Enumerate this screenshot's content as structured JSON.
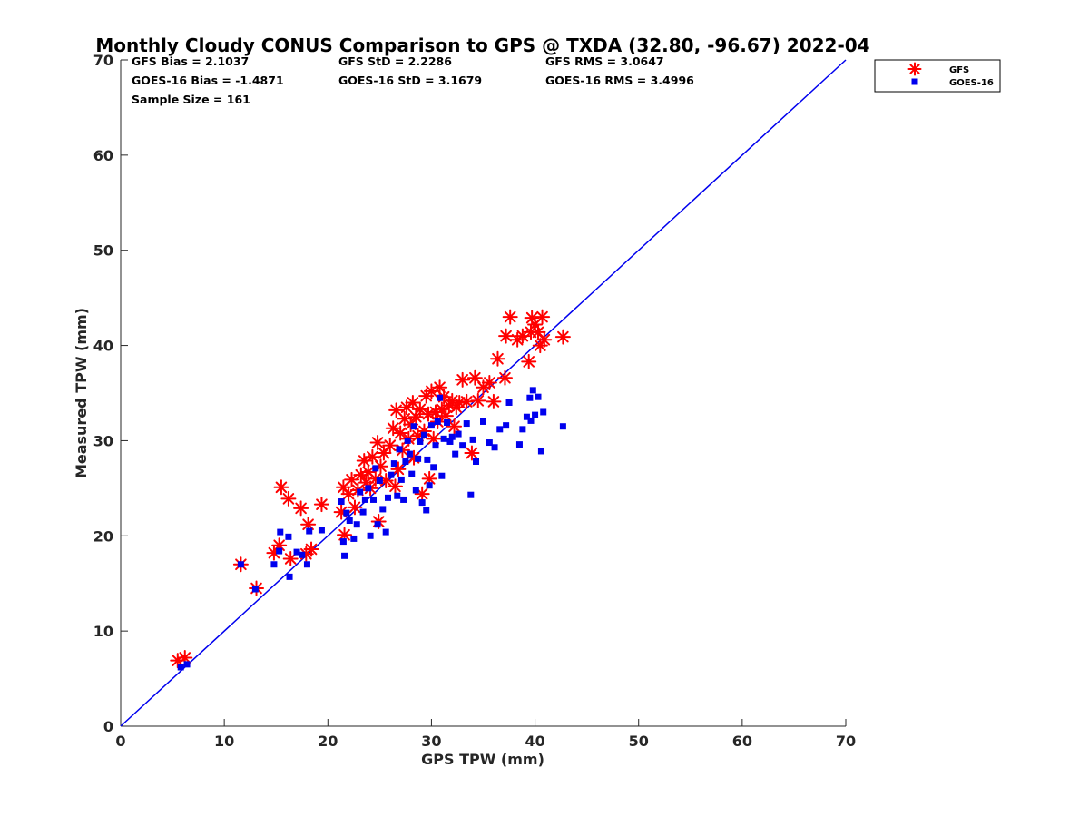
{
  "chart_data": {
    "type": "scatter",
    "title": "Monthly Cloudy CONUS Comparison to GPS @ TXDA (32.80, -96.67) 2022-04",
    "xlabel": "GPS TPW (mm)",
    "ylabel": "Measured TPW (mm)",
    "xlim": [
      0,
      70
    ],
    "ylim": [
      0,
      70
    ],
    "xticks": [
      "0",
      "10",
      "20",
      "30",
      "40",
      "50",
      "60",
      "70"
    ],
    "yticks": [
      "0",
      "10",
      "20",
      "30",
      "40",
      "50",
      "60",
      "70"
    ],
    "grid": false,
    "legend_position": "top-right outside",
    "reference_line": {
      "x": [
        0,
        70
      ],
      "y": [
        0,
        70
      ],
      "color": "#0000ee"
    },
    "stats": [
      [
        "GFS Bias = 2.1037",
        "GFS StD = 2.2286",
        "GFS RMS = 3.0647"
      ],
      [
        "GOES-16 Bias = -1.4871",
        "GOES-16 StD = 3.1679",
        "GOES-16 RMS = 3.4996"
      ],
      [
        "Sample Size = 161"
      ]
    ],
    "series": [
      {
        "name": "GFS",
        "marker": "asterisk",
        "color": "#ff0000",
        "points": [
          [
            5.5,
            6.9
          ],
          [
            6.2,
            7.2
          ],
          [
            11.6,
            17.0
          ],
          [
            13.1,
            14.5
          ],
          [
            14.8,
            18.2
          ],
          [
            15.3,
            19.0
          ],
          [
            15.5,
            25.1
          ],
          [
            16.2,
            23.9
          ],
          [
            16.4,
            17.6
          ],
          [
            17.4,
            22.9
          ],
          [
            17.9,
            18.1
          ],
          [
            18.1,
            21.2
          ],
          [
            18.4,
            18.6
          ],
          [
            19.4,
            23.3
          ],
          [
            21.3,
            22.5
          ],
          [
            21.5,
            25.1
          ],
          [
            21.6,
            20.1
          ],
          [
            22.0,
            24.4
          ],
          [
            22.3,
            25.9
          ],
          [
            22.6,
            23.0
          ],
          [
            22.9,
            24.8
          ],
          [
            23.2,
            26.4
          ],
          [
            23.5,
            27.9
          ],
          [
            23.7,
            25.6
          ],
          [
            23.9,
            26.7
          ],
          [
            24.1,
            25.0
          ],
          [
            24.3,
            28.3
          ],
          [
            24.6,
            26.0
          ],
          [
            24.8,
            29.8
          ],
          [
            24.9,
            21.5
          ],
          [
            25.1,
            27.3
          ],
          [
            25.4,
            28.7
          ],
          [
            25.6,
            25.8
          ],
          [
            26.0,
            29.5
          ],
          [
            26.3,
            31.3
          ],
          [
            26.5,
            25.2
          ],
          [
            26.6,
            33.2
          ],
          [
            26.8,
            27.0
          ],
          [
            27.0,
            30.8
          ],
          [
            27.2,
            29.0
          ],
          [
            27.4,
            32.3
          ],
          [
            27.6,
            33.5
          ],
          [
            27.8,
            30.2
          ],
          [
            28.0,
            31.7
          ],
          [
            28.2,
            34.0
          ],
          [
            28.3,
            28.2
          ],
          [
            28.5,
            32.5
          ],
          [
            28.7,
            30.5
          ],
          [
            28.9,
            33.3
          ],
          [
            29.1,
            24.4
          ],
          [
            29.3,
            31.0
          ],
          [
            29.5,
            34.7
          ],
          [
            29.7,
            32.8
          ],
          [
            29.8,
            26.0
          ],
          [
            30.0,
            35.2
          ],
          [
            30.2,
            30.2
          ],
          [
            30.4,
            33.0
          ],
          [
            30.6,
            32.0
          ],
          [
            30.8,
            35.6
          ],
          [
            31.0,
            33.3
          ],
          [
            31.2,
            34.6
          ],
          [
            31.4,
            32.6
          ],
          [
            31.7,
            33.7
          ],
          [
            32.0,
            34.2
          ],
          [
            32.2,
            31.5
          ],
          [
            32.4,
            33.5
          ],
          [
            32.7,
            34.0
          ],
          [
            33.0,
            36.4
          ],
          [
            33.4,
            34.1
          ],
          [
            33.9,
            28.7
          ],
          [
            34.2,
            36.6
          ],
          [
            34.5,
            34.2
          ],
          [
            35.0,
            35.6
          ],
          [
            35.6,
            36.1
          ],
          [
            36.0,
            34.1
          ],
          [
            36.4,
            38.6
          ],
          [
            37.1,
            36.6
          ],
          [
            37.6,
            43.0
          ],
          [
            37.2,
            41.0
          ],
          [
            38.3,
            40.6
          ],
          [
            38.8,
            41.0
          ],
          [
            39.4,
            38.3
          ],
          [
            39.6,
            41.4
          ],
          [
            39.7,
            42.9
          ],
          [
            40.0,
            42.2
          ],
          [
            40.3,
            41.4
          ],
          [
            40.5,
            40.0
          ],
          [
            40.7,
            43.0
          ],
          [
            40.9,
            40.6
          ],
          [
            42.7,
            40.9
          ]
        ]
      },
      {
        "name": "GOES-16",
        "marker": "square",
        "color": "#0000ee",
        "points": [
          [
            5.8,
            6.2
          ],
          [
            6.4,
            6.5
          ],
          [
            11.6,
            17.0
          ],
          [
            13.0,
            14.4
          ],
          [
            14.8,
            17.0
          ],
          [
            15.3,
            18.4
          ],
          [
            15.4,
            20.4
          ],
          [
            16.2,
            19.9
          ],
          [
            16.3,
            15.7
          ],
          [
            17.0,
            18.3
          ],
          [
            17.5,
            18.0
          ],
          [
            18.0,
            17.0
          ],
          [
            18.2,
            20.5
          ],
          [
            19.4,
            20.6
          ],
          [
            21.3,
            23.6
          ],
          [
            21.5,
            19.4
          ],
          [
            21.6,
            17.9
          ],
          [
            21.8,
            22.4
          ],
          [
            22.1,
            21.6
          ],
          [
            22.5,
            19.7
          ],
          [
            22.8,
            21.2
          ],
          [
            23.1,
            24.6
          ],
          [
            23.4,
            22.5
          ],
          [
            23.6,
            23.8
          ],
          [
            23.9,
            25.0
          ],
          [
            24.1,
            20.0
          ],
          [
            24.4,
            23.8
          ],
          [
            24.6,
            27.1
          ],
          [
            24.8,
            21.2
          ],
          [
            25.0,
            25.8
          ],
          [
            25.3,
            22.8
          ],
          [
            25.6,
            20.4
          ],
          [
            25.8,
            24.0
          ],
          [
            26.1,
            26.4
          ],
          [
            26.4,
            27.6
          ],
          [
            26.7,
            24.2
          ],
          [
            26.9,
            29.1
          ],
          [
            27.1,
            25.9
          ],
          [
            27.3,
            23.8
          ],
          [
            27.5,
            27.8
          ],
          [
            27.7,
            30.0
          ],
          [
            27.9,
            28.6
          ],
          [
            28.1,
            26.5
          ],
          [
            28.3,
            31.5
          ],
          [
            28.5,
            24.8
          ],
          [
            28.7,
            28.1
          ],
          [
            28.9,
            29.9
          ],
          [
            29.1,
            23.5
          ],
          [
            29.3,
            30.6
          ],
          [
            29.5,
            22.7
          ],
          [
            29.6,
            28.0
          ],
          [
            29.8,
            25.3
          ],
          [
            30.0,
            31.6
          ],
          [
            30.2,
            27.2
          ],
          [
            30.4,
            29.5
          ],
          [
            30.6,
            32.0
          ],
          [
            30.8,
            34.5
          ],
          [
            31.0,
            26.3
          ],
          [
            31.2,
            30.2
          ],
          [
            31.5,
            31.9
          ],
          [
            31.8,
            29.9
          ],
          [
            32.0,
            30.4
          ],
          [
            32.3,
            28.6
          ],
          [
            32.6,
            30.7
          ],
          [
            33.0,
            29.5
          ],
          [
            33.4,
            31.8
          ],
          [
            33.8,
            24.3
          ],
          [
            34.0,
            30.1
          ],
          [
            34.3,
            27.8
          ],
          [
            35.0,
            32.0
          ],
          [
            35.6,
            29.8
          ],
          [
            36.1,
            29.3
          ],
          [
            36.6,
            31.2
          ],
          [
            37.2,
            31.6
          ],
          [
            37.5,
            34.0
          ],
          [
            38.5,
            29.6
          ],
          [
            38.8,
            31.2
          ],
          [
            39.2,
            32.5
          ],
          [
            39.5,
            34.5
          ],
          [
            39.6,
            32.1
          ],
          [
            39.8,
            35.3
          ],
          [
            40.0,
            32.7
          ],
          [
            40.3,
            34.6
          ],
          [
            40.6,
            28.9
          ],
          [
            40.8,
            33.0
          ],
          [
            42.7,
            31.5
          ]
        ]
      }
    ]
  }
}
